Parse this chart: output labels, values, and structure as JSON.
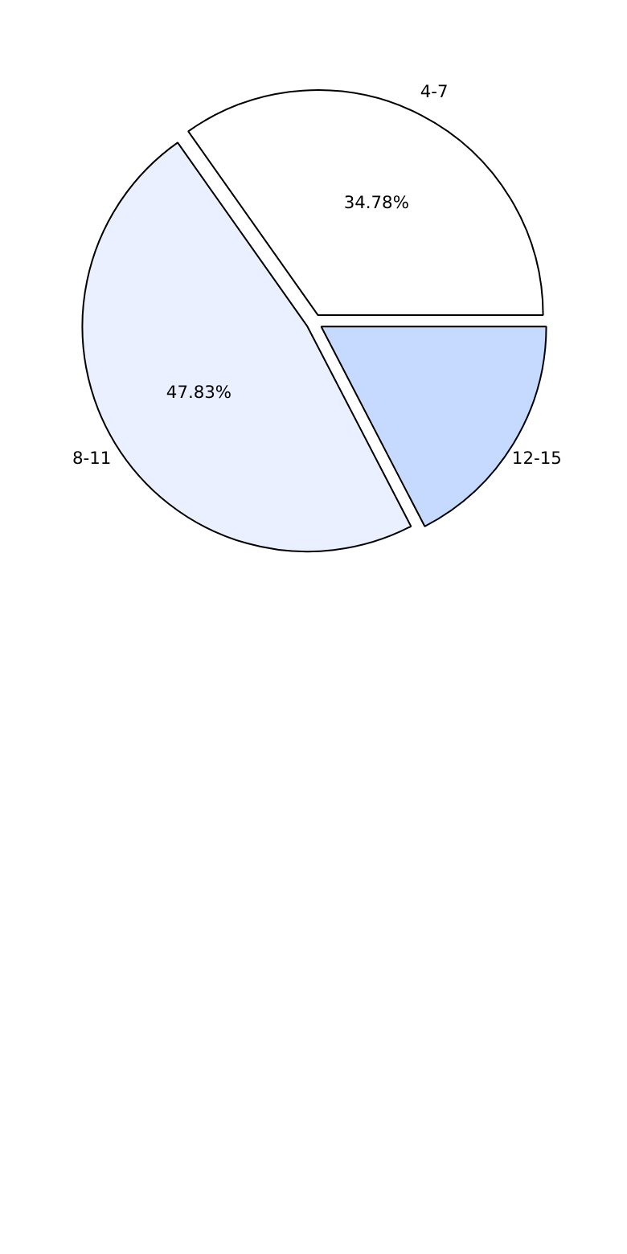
{
  "chart_data": {
    "type": "pie",
    "categories": [
      "4-7",
      "8-11",
      "12-15"
    ],
    "values": [
      34.78,
      47.83,
      17.39
    ],
    "colors": [
      "#ffffff",
      "#eaf0ff",
      "#c6d9ff"
    ],
    "value_labels": [
      "34.78%",
      "47.83%",
      null
    ]
  }
}
